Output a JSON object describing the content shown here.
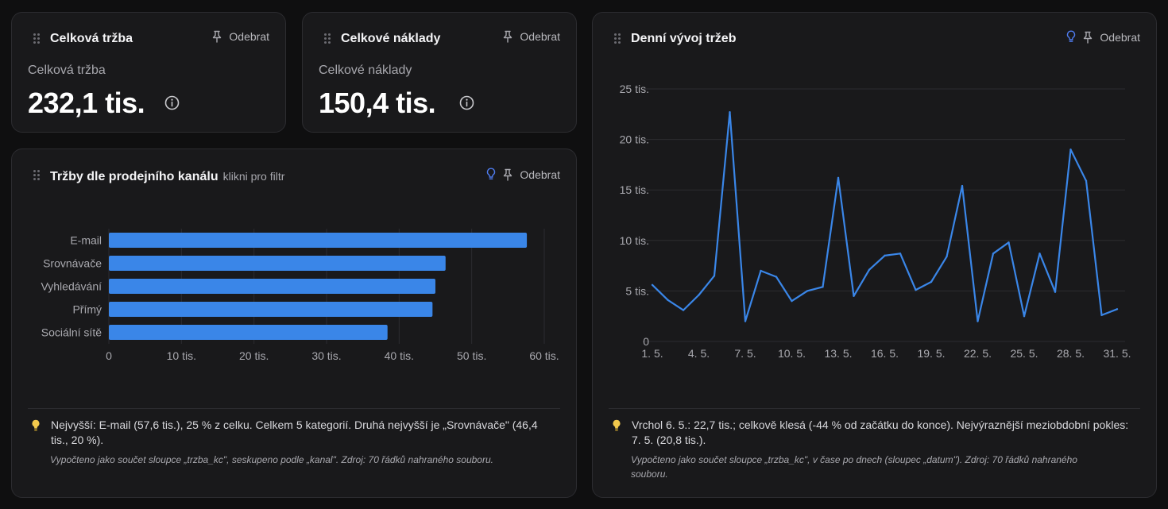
{
  "kpi_revenue": {
    "card_title": "Celková tržba",
    "remove_label": "Odebrat",
    "label": "Celková tržba",
    "value": "232,1 tis."
  },
  "kpi_costs": {
    "card_title": "Celkové náklady",
    "remove_label": "Odebrat",
    "label": "Celkové náklady",
    "value": "150,4 tis."
  },
  "channel_chart": {
    "card_title": "Tržby dle prodejního kanálu",
    "hint": "klikni pro filtr",
    "remove_label": "Odebrat",
    "insight": "Nejvyšší: E-mail (57,6 tis.), 25 % z celku. Celkem 5 kategorií. Druhá nejvyšší je „Srovnávače\" (46,4 tis., 20 %).",
    "note": "Vypočteno jako součet sloupce „trzba_kc\", seskupeno podle „kanal\". Zdroj: 70 řádků nahraného souboru."
  },
  "daily_chart": {
    "card_title": "Denní vývoj tržeb",
    "remove_label": "Odebrat",
    "insight": "Vrchol 6. 5.: 22,7 tis.; celkově klesá (-44 % od začátku do konce). Nejvýraznější meziobdobní pokles: 7. 5. (20,8 tis.).",
    "note": "Vypočteno jako součet sloupce „trzba_kc\", v čase po dnech (sloupec „datum\"). Zdroj: 70 řádků nahraného souboru."
  },
  "colors": {
    "accent": "#3a86e8",
    "background": "#0f0f10",
    "card": "#19191b",
    "bulb_blue": "#4f7cf0",
    "bulb_yellow": "#f2c94c"
  },
  "icons": [
    "drag-handle-icon",
    "pin-icon",
    "lightbulb-icon",
    "info-icon"
  ],
  "chart_data": [
    {
      "type": "bar",
      "orientation": "horizontal",
      "categories": [
        "E-mail",
        "Srovnávače",
        "Vyhledávání",
        "Přímý",
        "Sociální sítě"
      ],
      "values": [
        57600,
        46400,
        45000,
        44600,
        38400
      ],
      "xlim": [
        0,
        60000
      ],
      "xticks": [
        0,
        10000,
        20000,
        30000,
        40000,
        50000,
        60000
      ],
      "xtick_labels": [
        "0",
        "10 tis.",
        "20 tis.",
        "30 tis.",
        "40 tis.",
        "50 tis.",
        "60 tis."
      ],
      "grid": "vertical"
    },
    {
      "type": "line",
      "x": [
        1,
        2,
        3,
        4,
        5,
        6,
        7,
        8,
        9,
        10,
        11,
        12,
        13,
        14,
        15,
        16,
        17,
        18,
        19,
        20,
        21,
        22,
        23,
        24,
        25,
        26,
        27,
        28,
        29,
        30,
        31
      ],
      "values": [
        5600,
        4100,
        3100,
        4600,
        6500,
        22700,
        2000,
        7000,
        6400,
        4000,
        5000,
        5400,
        16200,
        4500,
        7100,
        8500,
        8700,
        5100,
        5900,
        8400,
        15400,
        2000,
        8700,
        9800,
        2500,
        8700,
        4900,
        19000,
        15900,
        2600,
        3200
      ],
      "xtick_labels": [
        "1. 5.",
        "4. 5.",
        "7. 5.",
        "10. 5.",
        "13. 5.",
        "16. 5.",
        "19. 5.",
        "22. 5.",
        "25. 5.",
        "28. 5.",
        "31. 5."
      ],
      "ylim": [
        0,
        25000
      ],
      "yticks": [
        0,
        5000,
        10000,
        15000,
        20000,
        25000
      ],
      "ytick_labels": [
        "0",
        "5 tis.",
        "10 tis.",
        "15 tis.",
        "20 tis.",
        "25 tis."
      ],
      "grid": "horizontal"
    }
  ]
}
